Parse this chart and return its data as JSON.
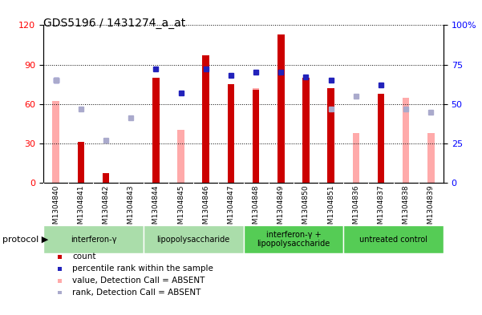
{
  "title": "GDS5196 / 1431274_a_at",
  "samples": [
    "GSM1304840",
    "GSM1304841",
    "GSM1304842",
    "GSM1304843",
    "GSM1304844",
    "GSM1304845",
    "GSM1304846",
    "GSM1304847",
    "GSM1304848",
    "GSM1304849",
    "GSM1304850",
    "GSM1304851",
    "GSM1304836",
    "GSM1304837",
    "GSM1304838",
    "GSM1304839"
  ],
  "count_red": [
    0,
    31,
    7,
    0,
    80,
    0,
    97,
    75,
    71,
    113,
    80,
    72,
    0,
    68,
    0,
    0
  ],
  "absent_pink": [
    62,
    0,
    0,
    0,
    0,
    40,
    0,
    0,
    72,
    0,
    0,
    0,
    38,
    0,
    65,
    38
  ],
  "percentile_blue": [
    65,
    0,
    0,
    0,
    72,
    57,
    72,
    68,
    70,
    70,
    67,
    65,
    0,
    62,
    0,
    0
  ],
  "rank_absent_blue": [
    65,
    47,
    27,
    41,
    0,
    0,
    0,
    0,
    0,
    0,
    0,
    47,
    55,
    0,
    47,
    45
  ],
  "groups": [
    {
      "label": "interferon-γ",
      "start": 0,
      "end": 4,
      "color": "#aaddaa"
    },
    {
      "label": "lipopolysaccharide",
      "start": 4,
      "end": 8,
      "color": "#aaddaa"
    },
    {
      "label": "interferon-γ +\nlipopolysaccharide",
      "start": 8,
      "end": 12,
      "color": "#55cc55"
    },
    {
      "label": "untreated control",
      "start": 12,
      "end": 16,
      "color": "#55cc55"
    }
  ],
  "ylim_left": [
    0,
    120
  ],
  "ylim_right": [
    0,
    100
  ],
  "yticks_left": [
    0,
    30,
    60,
    90,
    120
  ],
  "yticks_right": [
    0,
    25,
    50,
    75,
    100
  ],
  "color_red": "#cc0000",
  "color_pink": "#ffaaaa",
  "color_blue_dark": "#2222bb",
  "color_blue_light": "#aaaacc",
  "plot_bg": "#ffffff",
  "xtick_bg": "#d8d8d8"
}
